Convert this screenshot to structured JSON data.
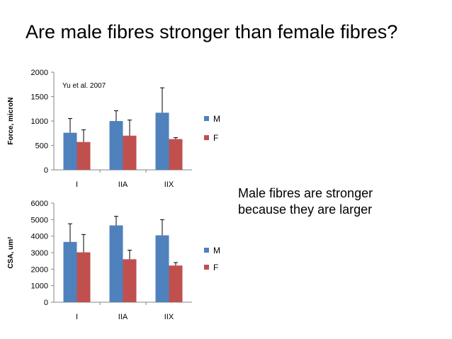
{
  "slide": {
    "title": "Are male fibres stronger than female fibres?",
    "body_lines": [
      "Male fibres are stronger",
      "because they are larger"
    ]
  },
  "colors": {
    "M": "#4f81bd",
    "F": "#c0504d",
    "axis": "#868686",
    "text": "#000000"
  },
  "chart_data": [
    {
      "type": "bar",
      "categories": [
        "I",
        "IIA",
        "IIX"
      ],
      "series": [
        {
          "name": "M",
          "values": [
            760,
            1000,
            1170
          ],
          "errors": [
            290,
            210,
            510
          ]
        },
        {
          "name": "F",
          "values": [
            570,
            700,
            630
          ],
          "errors": [
            250,
            320,
            30
          ]
        }
      ],
      "ylabel": "Force, microN",
      "ylim": [
        0,
        2000
      ],
      "yticks": [
        0,
        500,
        1000,
        1500,
        2000
      ],
      "annotation": "Yu et al. 2007",
      "legend": "right",
      "grid": false
    },
    {
      "type": "bar",
      "categories": [
        "I",
        "IIA",
        "IIX"
      ],
      "series": [
        {
          "name": "M",
          "values": [
            3650,
            4650,
            4050
          ],
          "errors": [
            1100,
            550,
            950
          ]
        },
        {
          "name": "F",
          "values": [
            3020,
            2600,
            2220
          ],
          "errors": [
            1080,
            550,
            180
          ]
        }
      ],
      "ylabel": "CSA, um²",
      "ylim": [
        0,
        6000
      ],
      "yticks": [
        0,
        1000,
        2000,
        3000,
        4000,
        5000,
        6000
      ],
      "legend": "right",
      "grid": false
    }
  ]
}
